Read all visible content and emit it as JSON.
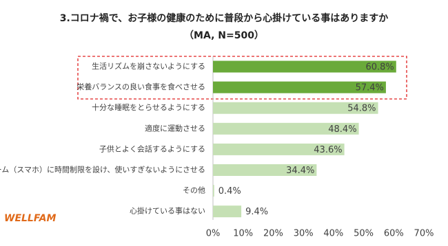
{
  "chart_data": {
    "type": "hbar",
    "title": "3.コロナ禍で、お子様の健康のために普段から心掛けている事はありますか",
    "subtitle": "（MA, N=500）",
    "categories": [
      "生活リズムを崩さないようにする",
      "栄養バランスの良い食事を食べさせる",
      "十分な睡眠をとらせるようにする",
      "適度に運動させる",
      "子供とよく会話するようにする",
      "ゲーム（スマホ）に時間制限を設け、使いすぎないようにさせる",
      "その他",
      "心掛けている事はない"
    ],
    "values": [
      60.8,
      57.4,
      54.8,
      48.4,
      43.6,
      34.4,
      0.4,
      9.4
    ],
    "value_labels": [
      "60.8%",
      "57.4%",
      "54.8%",
      "48.4%",
      "43.6%",
      "34.4%",
      "0.4%",
      "9.4%"
    ],
    "colors": [
      "#6aaa3a",
      "#6aaa3a",
      "#c5e0b4",
      "#c5e0b4",
      "#c5e0b4",
      "#c5e0b4",
      "#c5e0b4",
      "#c5e0b4"
    ],
    "xlim": [
      0,
      70
    ],
    "xticks": [
      {
        "value": 0,
        "label": "0%"
      },
      {
        "value": 10,
        "label": "10%"
      },
      {
        "value": 20,
        "label": "20%"
      },
      {
        "value": 30,
        "label": "30%"
      },
      {
        "value": 40,
        "label": "40%"
      },
      {
        "value": 50,
        "label": "50%"
      },
      {
        "value": 60,
        "label": "60%"
      },
      {
        "value": 70,
        "label": "70%"
      }
    ],
    "grid": false
  },
  "logo": "WELLFAM"
}
